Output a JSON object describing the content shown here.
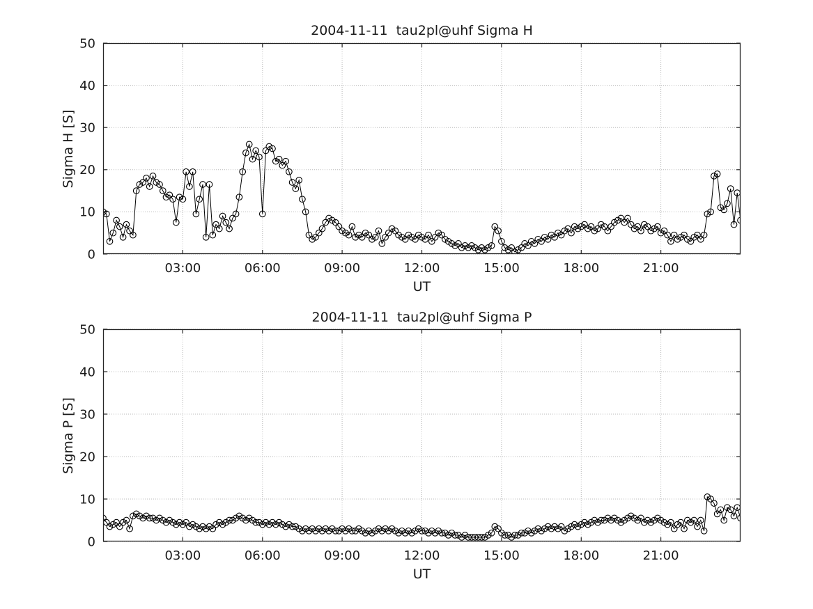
{
  "page": {
    "background": "#ffffff",
    "text_color": "#1a1a1a",
    "series_color": "#000000",
    "grid_color": "#b9b9b9"
  },
  "chart_data": [
    {
      "type": "line",
      "title": "2004-11-11  tau2pl@uhf Sigma H",
      "xlabel": "UT",
      "ylabel": "Sigma H [S]",
      "xlim": [
        0,
        24
      ],
      "ylim": [
        0,
        50
      ],
      "grid": true,
      "legend": "none",
      "marker": "open-circle",
      "line_color": "#000000",
      "x_start": 0,
      "x_step_hours": 0.125,
      "xticks": [
        {
          "value": 3,
          "label": "03:00"
        },
        {
          "value": 6,
          "label": "06:00"
        },
        {
          "value": 9,
          "label": "09:00"
        },
        {
          "value": 12,
          "label": "12:00"
        },
        {
          "value": 15,
          "label": "15:00"
        },
        {
          "value": 18,
          "label": "18:00"
        },
        {
          "value": 21,
          "label": "21:00"
        }
      ],
      "yticks": [
        {
          "value": 0,
          "label": "0"
        },
        {
          "value": 10,
          "label": "10"
        },
        {
          "value": 20,
          "label": "20"
        },
        {
          "value": 30,
          "label": "30"
        },
        {
          "value": 40,
          "label": "40"
        },
        {
          "value": 50,
          "label": "50"
        }
      ],
      "values": [
        10,
        9.5,
        3,
        5,
        8,
        6.5,
        4,
        7,
        5.5,
        4.5,
        15,
        16.5,
        17,
        18,
        16,
        18.5,
        17,
        16.5,
        15,
        13.5,
        14,
        13,
        7.5,
        13.5,
        13,
        19.5,
        16,
        19.5,
        9.5,
        13,
        16.5,
        4,
        16.5,
        4.5,
        7,
        6,
        9,
        7.5,
        6,
        8.5,
        9.5,
        13.5,
        19.5,
        24,
        26,
        22.5,
        24.5,
        23,
        9.5,
        24.5,
        25.5,
        25,
        22,
        22.5,
        21,
        22,
        19.5,
        17,
        15.5,
        17.5,
        13,
        10,
        4.5,
        3.5,
        4,
        5,
        6,
        7.5,
        8.5,
        8,
        7.5,
        6.5,
        5.5,
        5,
        4.5,
        6.5,
        4,
        4.5,
        4,
        5,
        4.5,
        3.5,
        4,
        5.5,
        2.5,
        4,
        5,
        6,
        5.5,
        4.5,
        4,
        3.5,
        4.5,
        4,
        3.5,
        4.5,
        4,
        3.5,
        4.5,
        3,
        4,
        5,
        4.5,
        3.5,
        3,
        2.5,
        2,
        2.5,
        1.5,
        2,
        1.5,
        2,
        1.5,
        1,
        1.5,
        1,
        1.5,
        2,
        6.5,
        5.5,
        3,
        1.5,
        1,
        1.5,
        0.5,
        1,
        1.5,
        2.5,
        2,
        3,
        2.5,
        3.5,
        3,
        4,
        3.5,
        4.5,
        4,
        5,
        4.5,
        5.5,
        6,
        5,
        6.5,
        6,
        6.5,
        7,
        6,
        6.5,
        5.5,
        6,
        7,
        6.5,
        5.5,
        6.5,
        7.5,
        8,
        8.5,
        7.5,
        8.5,
        7,
        6,
        6.5,
        5.5,
        7,
        6.5,
        5.5,
        6,
        6.5,
        5,
        5.5,
        4.5,
        3,
        4.5,
        3.5,
        4,
        4.5,
        3.5,
        3,
        4,
        4.5,
        3.5,
        4.5,
        9.5,
        10,
        18.5,
        19,
        11,
        10.5,
        12,
        15.5,
        7,
        14.5,
        8
      ]
    },
    {
      "type": "line",
      "title": "2004-11-11  tau2pl@uhf Sigma P",
      "xlabel": "UT",
      "ylabel": "Sigma P [S]",
      "xlim": [
        0,
        24
      ],
      "ylim": [
        0,
        50
      ],
      "grid": true,
      "legend": "none",
      "marker": "open-circle",
      "line_color": "#000000",
      "x_start": 0,
      "x_step_hours": 0.125,
      "xticks": [
        {
          "value": 3,
          "label": "03:00"
        },
        {
          "value": 6,
          "label": "06:00"
        },
        {
          "value": 9,
          "label": "09:00"
        },
        {
          "value": 12,
          "label": "12:00"
        },
        {
          "value": 15,
          "label": "15:00"
        },
        {
          "value": 18,
          "label": "18:00"
        },
        {
          "value": 21,
          "label": "21:00"
        }
      ],
      "yticks": [
        {
          "value": 0,
          "label": "0"
        },
        {
          "value": 10,
          "label": "10"
        },
        {
          "value": 20,
          "label": "20"
        },
        {
          "value": 30,
          "label": "30"
        },
        {
          "value": 40,
          "label": "40"
        },
        {
          "value": 50,
          "label": "50"
        }
      ],
      "values": [
        5.5,
        4.5,
        3.5,
        4,
        4.5,
        3.5,
        4.5,
        5,
        3,
        6,
        6.5,
        6,
        5.5,
        6,
        5.5,
        5.5,
        5,
        5.5,
        5,
        4.5,
        5,
        4.5,
        4,
        4.5,
        4,
        4.5,
        3.5,
        4,
        3.5,
        3,
        3.5,
        3,
        3.5,
        3,
        4,
        4.5,
        4,
        4.5,
        5,
        5,
        5.5,
        6,
        5.5,
        5,
        5.5,
        5,
        4.5,
        4.5,
        4,
        4.5,
        4,
        4.5,
        4,
        4.5,
        4,
        3.5,
        4,
        3.5,
        3.5,
        3,
        2.5,
        3,
        2.5,
        3,
        2.5,
        3,
        2.5,
        3,
        2.5,
        3,
        2.5,
        2.5,
        3,
        2.5,
        3,
        2.5,
        2.5,
        3,
        2.5,
        2,
        2.5,
        2,
        2.5,
        3,
        2.5,
        3,
        2.5,
        3,
        2.5,
        2,
        2.5,
        2,
        2.5,
        2,
        2.5,
        3,
        2.5,
        2.5,
        2,
        2.5,
        2,
        2.5,
        2,
        2,
        1.5,
        2,
        1.5,
        1.5,
        1,
        1.5,
        1,
        1,
        1,
        1,
        1,
        1,
        1.5,
        2,
        3.5,
        3,
        2,
        1.5,
        1.5,
        1,
        1.5,
        1.5,
        2,
        2,
        2.5,
        2,
        2.5,
        3,
        2.5,
        3,
        3.5,
        3,
        3.5,
        3,
        3.5,
        2.5,
        3,
        3.5,
        4,
        3.5,
        4,
        4.5,
        4,
        4.5,
        5,
        4.5,
        5,
        5,
        5.5,
        5,
        5.5,
        5,
        4.5,
        5,
        5.5,
        6,
        5.5,
        5,
        5.5,
        4.5,
        5,
        4.5,
        5,
        5.5,
        5,
        4.5,
        4,
        4.5,
        3,
        4,
        4.5,
        3,
        5,
        4.5,
        5,
        3.5,
        5,
        2.5,
        10.5,
        10,
        9,
        6.5,
        7.5,
        5,
        8,
        7.5,
        6,
        8,
        5.5
      ]
    }
  ]
}
